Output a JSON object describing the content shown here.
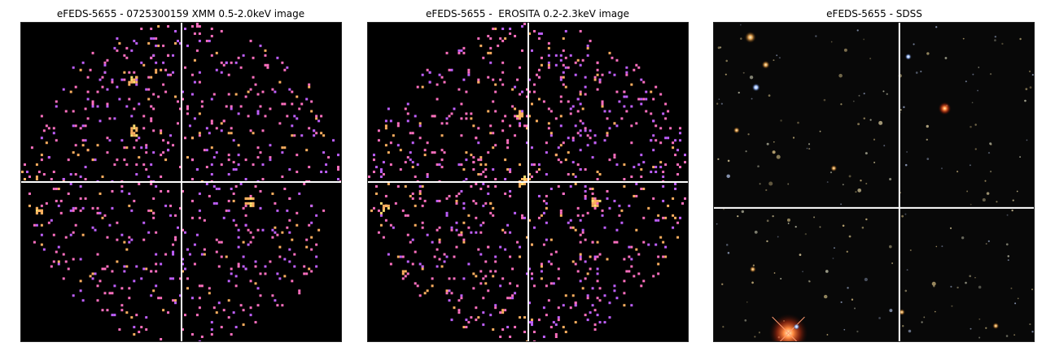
{
  "panels": [
    {
      "title": "eFEDS-5655 - 0725300159 XMM 0.5-2.0keV image",
      "kind": "xray-counts",
      "crosshair": {
        "x_frac": 0.5,
        "y_frac": 0.5
      }
    },
    {
      "title": "eFEDS-5655 -  EROSITA 0.2-2.3keV image",
      "kind": "xray-counts",
      "crosshair": {
        "x_frac": 0.5,
        "y_frac": 0.5
      }
    },
    {
      "title": "eFEDS-5655 - SDSS",
      "kind": "optical-rgb",
      "crosshair": {
        "x_frac": 0.58,
        "y_frac": 0.58
      }
    }
  ],
  "colors": {
    "background": "#000000",
    "crosshair": "#ffffff",
    "count_low": "#c060ff",
    "count_mid": "#ff70c0",
    "count_high": "#ffb060",
    "count_peak": "#ffe070",
    "bright_star": "#ff5a20"
  }
}
